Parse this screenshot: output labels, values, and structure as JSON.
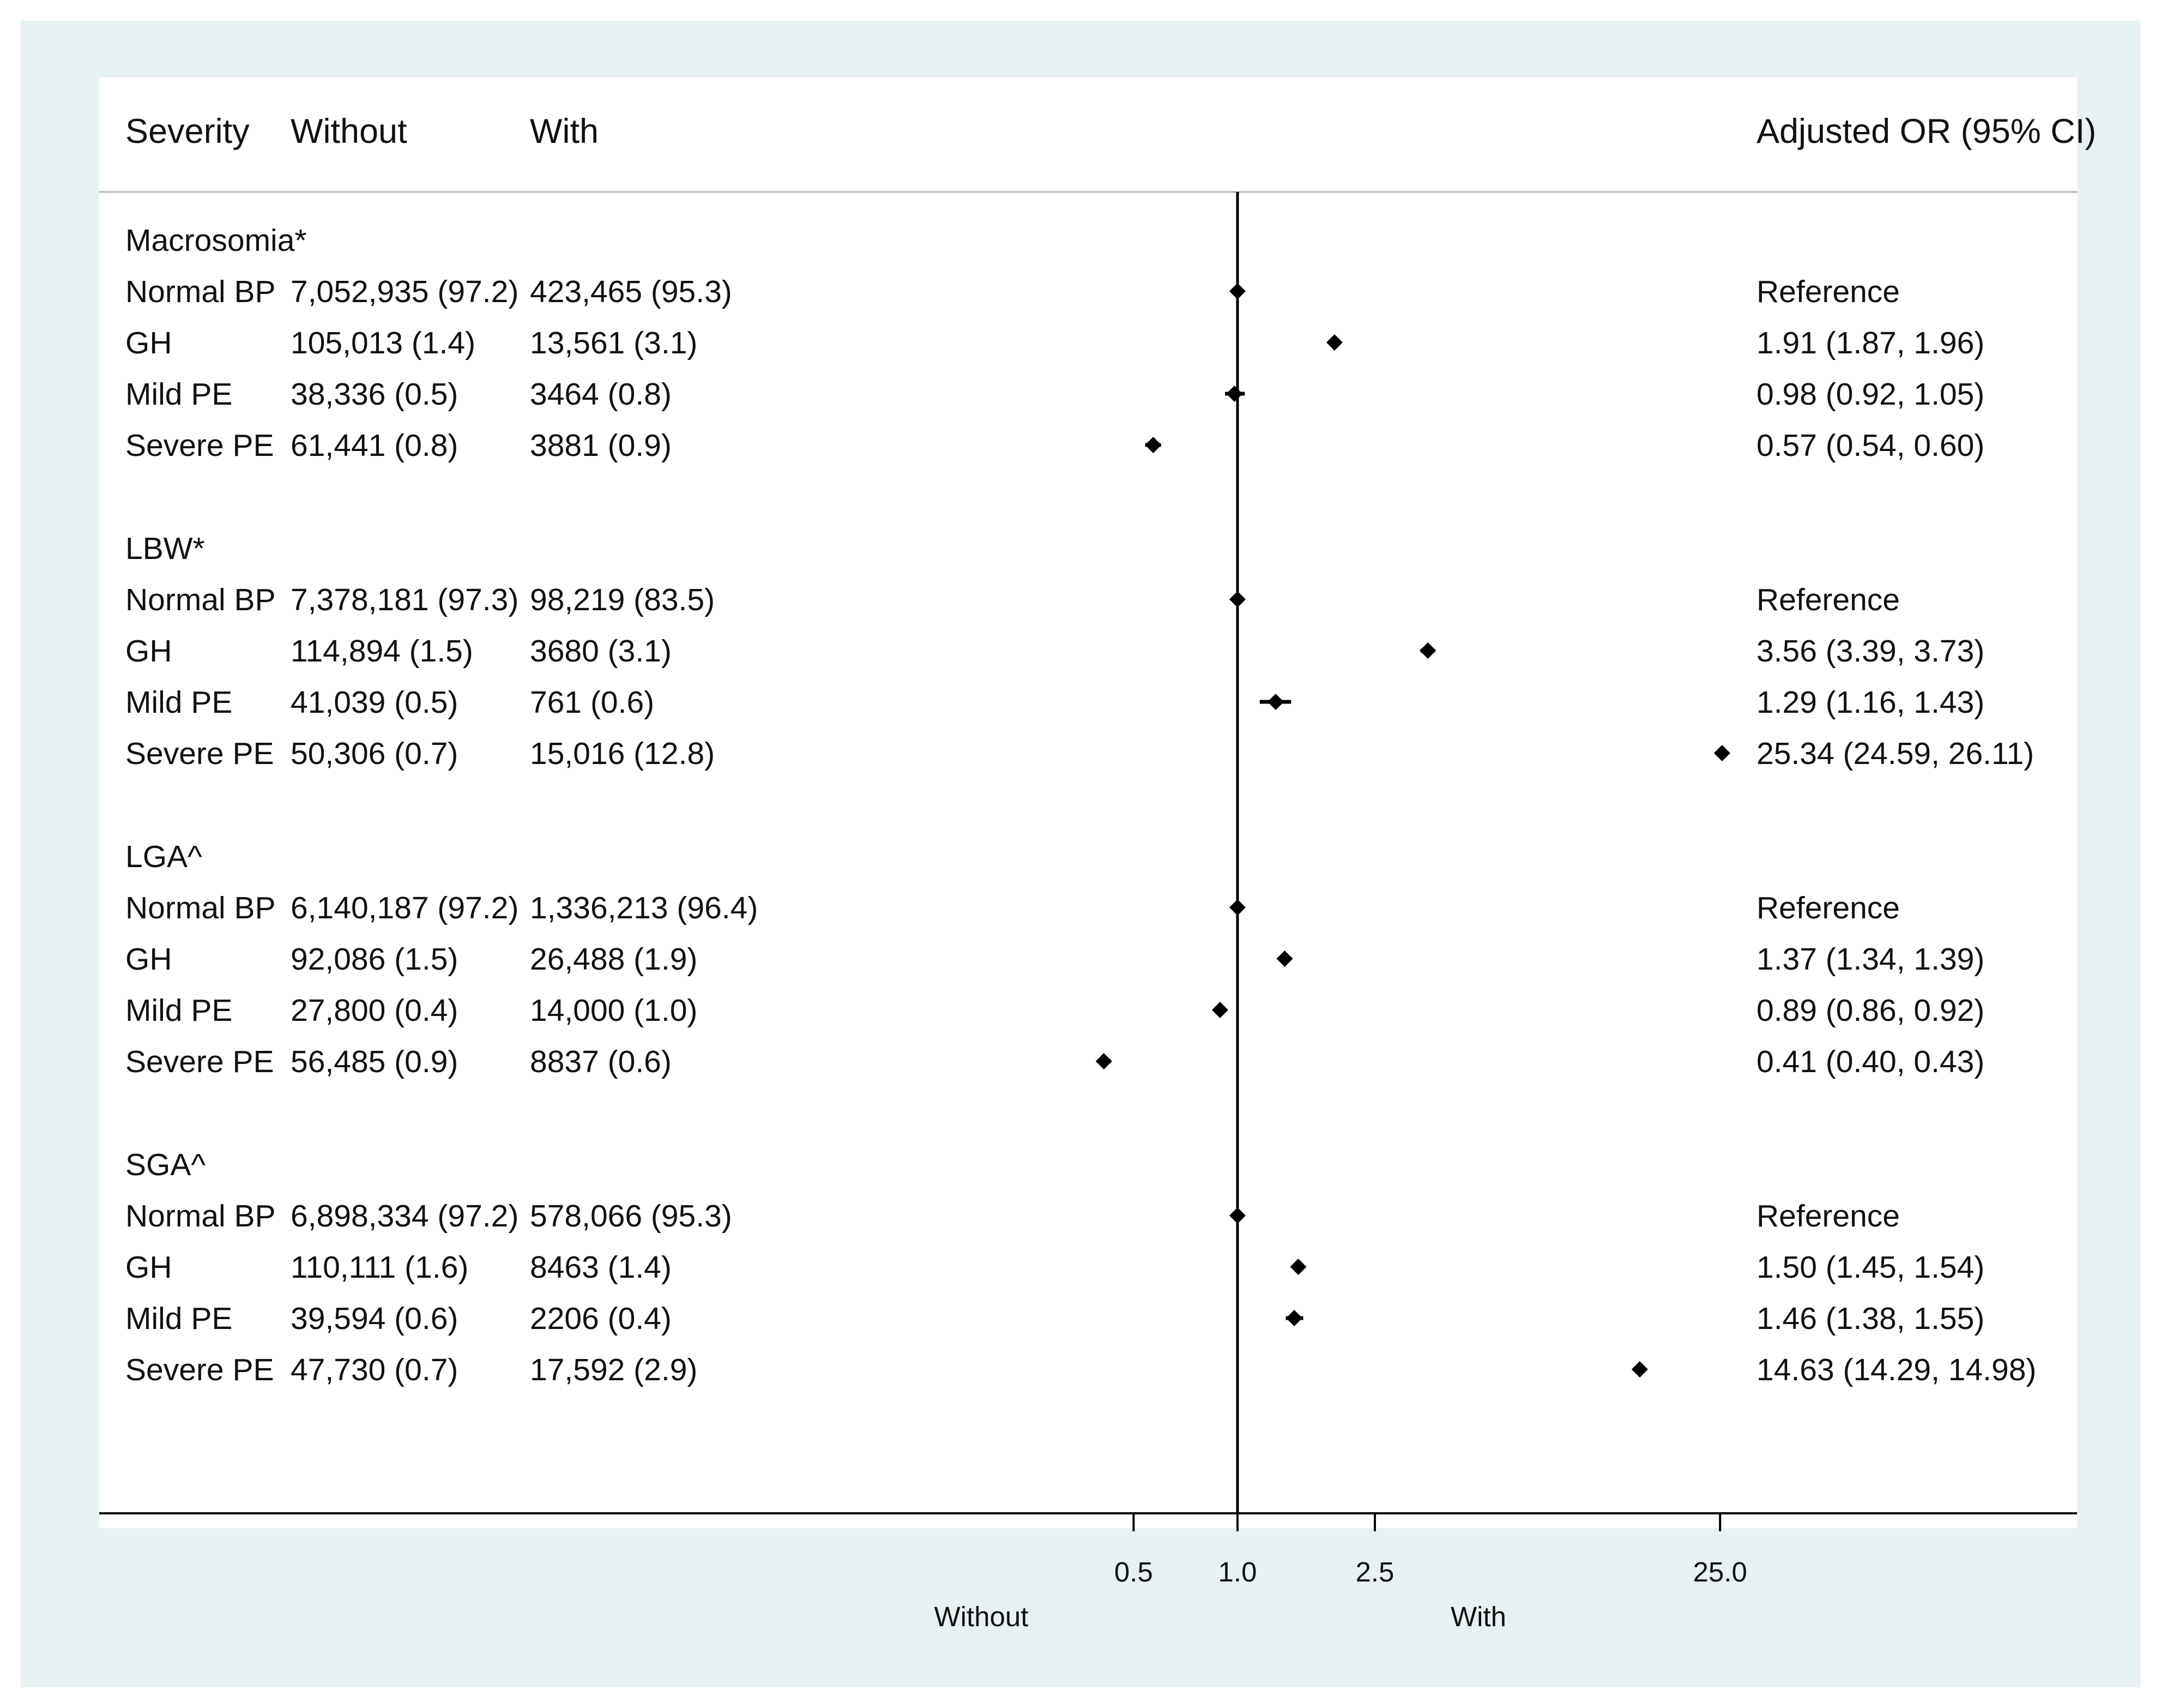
{
  "chart_data": {
    "type": "forest",
    "columns": [
      "Severity",
      "Without",
      "With",
      "Adjusted OR (95% CI)"
    ],
    "x_scale": "log",
    "reference_line": 1.0,
    "x_ticks": [
      "0.5",
      "1.0",
      "2.5",
      "25.0"
    ],
    "x_tick_values": [
      0.5,
      1.0,
      2.5,
      25.0
    ],
    "direction_labels": {
      "left": "Without",
      "right": "With"
    },
    "groups": [
      {
        "name": "Macrosomia*",
        "rows": [
          {
            "severity": "Normal BP",
            "without": "7,052,935 (97.2)",
            "with": "423,465 (95.3)",
            "or_text": "Reference",
            "or": 1.0,
            "lo": 1.0,
            "hi": 1.0
          },
          {
            "severity": "GH",
            "without": "105,013 (1.4)",
            "with": "13,561 (3.1)",
            "or_text": "1.91 (1.87, 1.96)",
            "or": 1.91,
            "lo": 1.87,
            "hi": 1.96
          },
          {
            "severity": "Mild PE",
            "without": "38,336 (0.5)",
            "with": "3464 (0.8)",
            "or_text": "0.98 (0.92, 1.05)",
            "or": 0.98,
            "lo": 0.92,
            "hi": 1.05
          },
          {
            "severity": "Severe PE",
            "without": "61,441 (0.8)",
            "with": "3881 (0.9)",
            "or_text": "0.57 (0.54, 0.60)",
            "or": 0.57,
            "lo": 0.54,
            "hi": 0.6
          }
        ]
      },
      {
        "name": "LBW*",
        "rows": [
          {
            "severity": "Normal BP",
            "without": "7,378,181 (97.3)",
            "with": "98,219 (83.5)",
            "or_text": "Reference",
            "or": 1.0,
            "lo": 1.0,
            "hi": 1.0
          },
          {
            "severity": "GH",
            "without": "114,894 (1.5)",
            "with": "3680 (3.1)",
            "or_text": "3.56 (3.39, 3.73)",
            "or": 3.56,
            "lo": 3.39,
            "hi": 3.73
          },
          {
            "severity": "Mild PE",
            "without": "41,039 (0.5)",
            "with": "761 (0.6)",
            "or_text": "1.29 (1.16, 1.43)",
            "or": 1.29,
            "lo": 1.16,
            "hi": 1.43
          },
          {
            "severity": "Severe PE",
            "without": "50,306 (0.7)",
            "with": "15,016 (12.8)",
            "or_text": "25.34 (24.59, 26.11)",
            "or": 25.34,
            "lo": 24.59,
            "hi": 26.11
          }
        ]
      },
      {
        "name": "LGA^",
        "rows": [
          {
            "severity": "Normal BP",
            "without": "6,140,187 (97.2)",
            "with": "1,336,213 (96.4)",
            "or_text": "Reference",
            "or": 1.0,
            "lo": 1.0,
            "hi": 1.0
          },
          {
            "severity": "GH",
            "without": "92,086 (1.5)",
            "with": "26,488 (1.9)",
            "or_text": "1.37 (1.34, 1.39)",
            "or": 1.37,
            "lo": 1.34,
            "hi": 1.39
          },
          {
            "severity": "Mild PE",
            "without": "27,800 (0.4)",
            "with": "14,000 (1.0)",
            "or_text": "0.89 (0.86, 0.92)",
            "or": 0.89,
            "lo": 0.86,
            "hi": 0.92
          },
          {
            "severity": "Severe PE",
            "without": "56,485 (0.9)",
            "with": "8837 (0.6)",
            "or_text": "0.41 (0.40, 0.43)",
            "or": 0.41,
            "lo": 0.4,
            "hi": 0.43
          }
        ]
      },
      {
        "name": "SGA^",
        "rows": [
          {
            "severity": "Normal BP",
            "without": "6,898,334 (97.2)",
            "with": "578,066 (95.3)",
            "or_text": "Reference",
            "or": 1.0,
            "lo": 1.0,
            "hi": 1.0
          },
          {
            "severity": "GH",
            "without": "110,111 (1.6)",
            "with": "8463 (1.4)",
            "or_text": "1.50 (1.45, 1.54)",
            "or": 1.5,
            "lo": 1.45,
            "hi": 1.54
          },
          {
            "severity": "Mild PE",
            "without": "39,594 (0.6)",
            "with": "2206 (0.4)",
            "or_text": "1.46 (1.38, 1.55)",
            "or": 1.46,
            "lo": 1.38,
            "hi": 1.55
          },
          {
            "severity": "Severe PE",
            "without": "47,730 (0.7)",
            "with": "17,592 (2.9)",
            "or_text": "14.63 (14.29, 14.98)",
            "or": 14.63,
            "lo": 14.29,
            "hi": 14.98
          }
        ]
      }
    ]
  }
}
